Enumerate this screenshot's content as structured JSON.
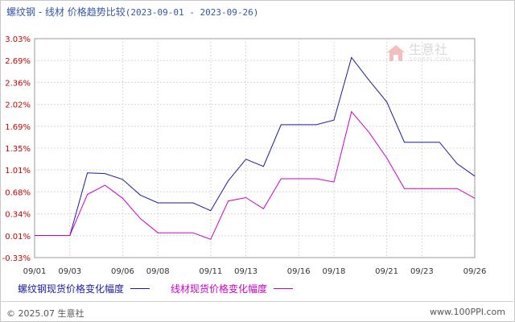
{
  "title": {
    "main": "螺纹钢 - 线材 价格趋势比较",
    "range": "(2023-09-01 - 2023-09-26)"
  },
  "watermark": {
    "brand": "生意社",
    "sub": "100PPI.COM"
  },
  "footer": {
    "copyright": "© 2025.07 生意社",
    "site": "www.100PPI.com"
  },
  "chart_data": {
    "type": "line",
    "x": [
      "09/01",
      "09/02",
      "09/03",
      "09/04",
      "09/05",
      "09/06",
      "09/07",
      "09/08",
      "09/09",
      "09/10",
      "09/11",
      "09/12",
      "09/13",
      "09/14",
      "09/15",
      "09/16",
      "09/17",
      "09/18",
      "09/19",
      "09/20",
      "09/21",
      "09/22",
      "09/23",
      "09/24",
      "09/25",
      "09/26"
    ],
    "x_tick_labels": [
      "09/01",
      "09/03",
      "09/06",
      "09/08",
      "09/11",
      "09/13",
      "09/16",
      "09/18",
      "09/21",
      "09/23",
      "09/26"
    ],
    "y_tick_labels": [
      "3.03%",
      "2.69%",
      "2.36%",
      "2.02%",
      "1.69%",
      "1.35%",
      "1.01%",
      "0.68%",
      "0.34%",
      "0.01%",
      "-0.33%"
    ],
    "ylim": [
      -0.33,
      3.03
    ],
    "grid": true,
    "legend_position": "bottom",
    "series": [
      {
        "name": "螺纹钢现货价格变化幅度",
        "color": "#1a1aa6",
        "values": [
          0.01,
          0.01,
          0.01,
          0.97,
          0.96,
          0.87,
          0.63,
          0.51,
          0.51,
          0.51,
          0.39,
          0.85,
          1.18,
          1.07,
          1.71,
          1.71,
          1.71,
          1.78,
          2.74,
          2.39,
          2.06,
          1.44,
          1.44,
          1.44,
          1.11,
          0.92
        ]
      },
      {
        "name": "线材现货价格变化幅度",
        "color": "#cc00cc",
        "values": [
          0.01,
          0.01,
          0.01,
          0.64,
          0.78,
          0.58,
          0.27,
          0.05,
          0.05,
          0.05,
          -0.05,
          0.54,
          0.59,
          0.42,
          0.88,
          0.88,
          0.88,
          0.83,
          1.91,
          1.59,
          1.2,
          0.73,
          0.73,
          0.73,
          0.73,
          0.58
        ]
      }
    ]
  }
}
